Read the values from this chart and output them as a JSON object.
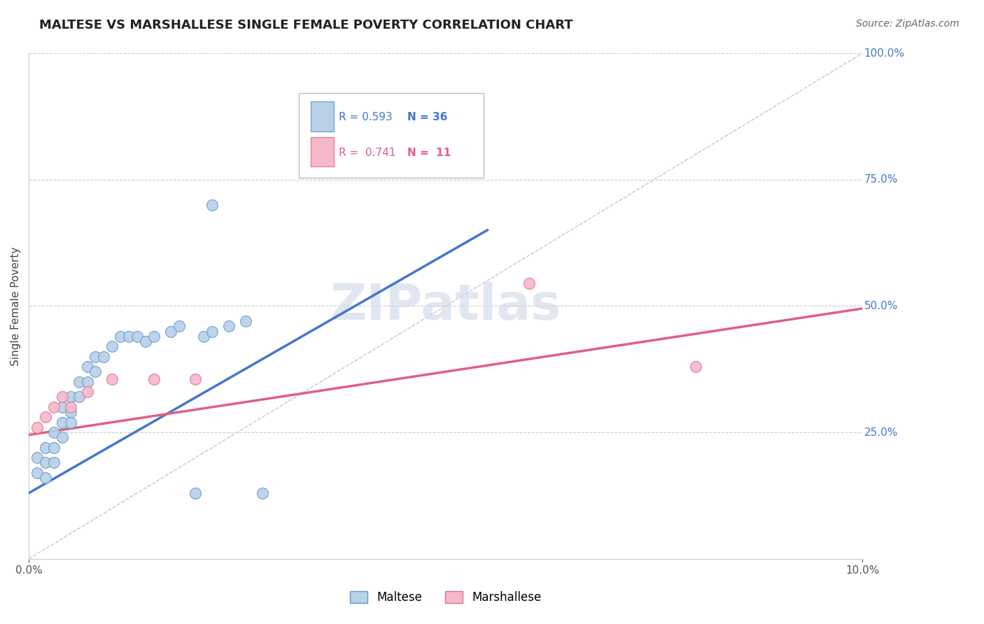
{
  "title": "MALTESE VS MARSHALLESE SINGLE FEMALE POVERTY CORRELATION CHART",
  "source": "Source: ZipAtlas.com",
  "ylabel": "Single Female Poverty",
  "xlim": [
    0.0,
    0.1
  ],
  "ylim": [
    0.0,
    1.0
  ],
  "ytick_right_labels": [
    "25.0%",
    "50.0%",
    "75.0%",
    "100.0%"
  ],
  "ytick_right_vals": [
    0.25,
    0.5,
    0.75,
    1.0
  ],
  "r_maltese": 0.593,
  "n_maltese": 36,
  "r_marshallese": 0.741,
  "n_marshallese": 11,
  "color_maltese_fill": "#b8d0e8",
  "color_marshallese_fill": "#f5b8c8",
  "color_maltese_edge": "#6699cc",
  "color_marshallese_edge": "#e07090",
  "color_maltese_line": "#4477cc",
  "color_marshallese_line": "#e06080",
  "color_diagonal": "#bbbbdd",
  "watermark_color": "#ccd8e8",
  "maltese_x": [
    0.001,
    0.001,
    0.002,
    0.002,
    0.002,
    0.003,
    0.003,
    0.003,
    0.004,
    0.004,
    0.004,
    0.005,
    0.005,
    0.005,
    0.006,
    0.006,
    0.007,
    0.007,
    0.008,
    0.008,
    0.009,
    0.01,
    0.011,
    0.012,
    0.013,
    0.014,
    0.015,
    0.017,
    0.018,
    0.02,
    0.021,
    0.022,
    0.024,
    0.026,
    0.028,
    0.022
  ],
  "maltese_y": [
    0.2,
    0.17,
    0.22,
    0.19,
    0.16,
    0.25,
    0.22,
    0.19,
    0.3,
    0.27,
    0.24,
    0.32,
    0.29,
    0.27,
    0.35,
    0.32,
    0.38,
    0.35,
    0.4,
    0.37,
    0.4,
    0.42,
    0.44,
    0.44,
    0.44,
    0.43,
    0.44,
    0.45,
    0.46,
    0.13,
    0.44,
    0.45,
    0.46,
    0.47,
    0.13,
    0.7
  ],
  "marshallese_x": [
    0.001,
    0.002,
    0.003,
    0.004,
    0.005,
    0.007,
    0.01,
    0.015,
    0.02,
    0.06,
    0.08
  ],
  "marshallese_y": [
    0.26,
    0.28,
    0.3,
    0.32,
    0.3,
    0.33,
    0.355,
    0.355,
    0.355,
    0.545,
    0.38
  ],
  "maltese_line_x": [
    0.0,
    0.055
  ],
  "maltese_line_y": [
    0.13,
    0.65
  ],
  "marshallese_line_x": [
    0.0,
    0.1
  ],
  "marshallese_line_y": [
    0.245,
    0.495
  ]
}
